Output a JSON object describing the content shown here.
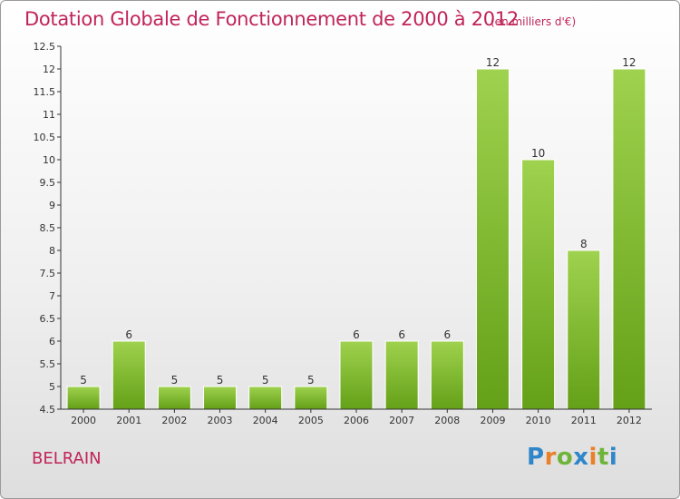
{
  "header": {
    "title": "Dotation Globale de Fonctionnement de 2000 à 2012",
    "subtitle": "(en milliers d'€)"
  },
  "footer": {
    "commune": "BELRAIN",
    "logo_text": "Proxiti"
  },
  "colors": {
    "title": "#c0245a",
    "bar_light": "#9fd24e",
    "bar_dark": "#64a018",
    "axis": "#333333"
  },
  "chart_data": {
    "type": "bar",
    "title": "Dotation Globale de Fonctionnement de 2000 à 2012",
    "subtitle": "(en milliers d'€)",
    "categories": [
      "2000",
      "2001",
      "2002",
      "2003",
      "2004",
      "2005",
      "2006",
      "2007",
      "2008",
      "2009",
      "2010",
      "2011",
      "2012"
    ],
    "values": [
      5,
      6,
      5,
      5,
      5,
      5,
      6,
      6,
      6,
      12,
      10,
      8,
      12
    ],
    "data_labels": [
      "5",
      "6",
      "5",
      "5",
      "5",
      "5",
      "6",
      "6",
      "6",
      "12",
      "10",
      "8",
      "12"
    ],
    "ylim": [
      4.5,
      12.5
    ],
    "yticks": [
      4.5,
      5,
      5.5,
      6,
      6.5,
      7,
      7.5,
      8,
      8.5,
      9,
      9.5,
      10,
      10.5,
      11,
      11.5,
      12,
      12.5
    ],
    "ytick_labels": [
      "4.5",
      "5",
      "5.5",
      "6",
      "6.5",
      "7",
      "7.5",
      "8",
      "8.5",
      "9",
      "9.5",
      "10",
      "10.5",
      "11",
      "11.5",
      "12",
      "12.5"
    ],
    "xlabel": "",
    "ylabel": "",
    "grid": false,
    "legend": "none"
  }
}
